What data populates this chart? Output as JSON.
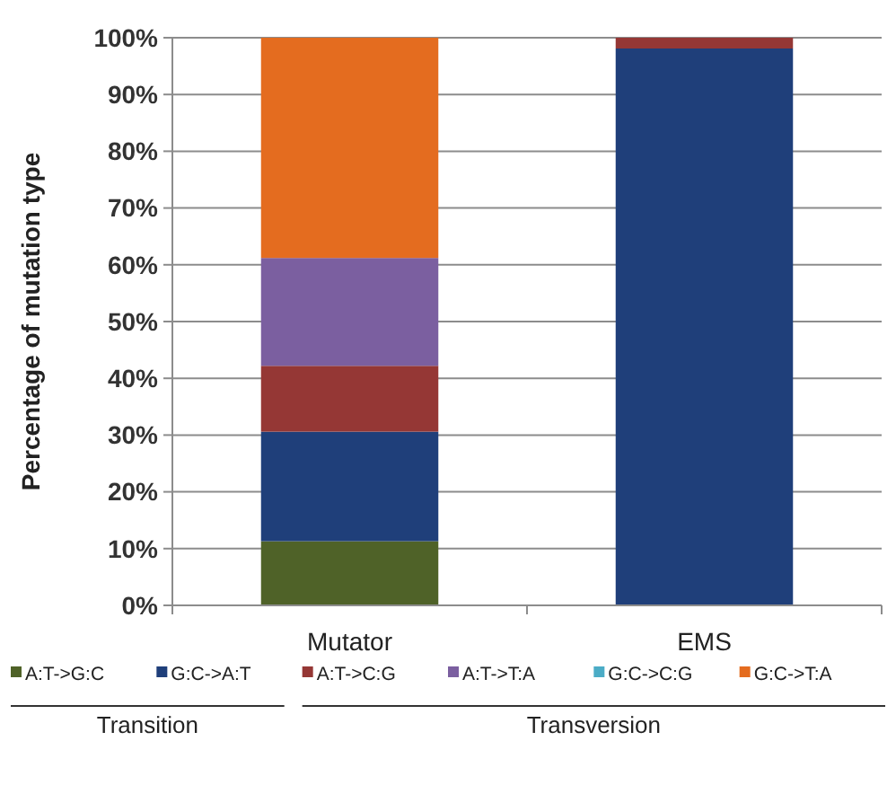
{
  "chart_data": {
    "type": "bar",
    "stacked": true,
    "ylabel": "Percentage of mutation type",
    "categories": [
      "Mutator",
      "EMS"
    ],
    "series": [
      {
        "name": "A:T->G:C",
        "color": "#4f6228",
        "values": [
          11.3,
          0
        ]
      },
      {
        "name": "G:C->A:T",
        "color": "#1f3f7a",
        "values": [
          19.3,
          98.1
        ]
      },
      {
        "name": "A:T->C:G",
        "color": "#953735",
        "values": [
          11.6,
          1.9
        ]
      },
      {
        "name": "A:T->T:A",
        "color": "#7b5fa0",
        "values": [
          19,
          0
        ]
      },
      {
        "name": "G:C->C:G",
        "color": "#4bacc6",
        "values": [
          0,
          0
        ]
      },
      {
        "name": "G:C->T:A",
        "color": "#e46c1f",
        "values": [
          38.8,
          0
        ]
      }
    ],
    "ylim": [
      0,
      100
    ],
    "yticks": [
      {
        "value": 0,
        "label": "0%"
      },
      {
        "value": 10,
        "label": "10%"
      },
      {
        "value": 20,
        "label": "20%"
      },
      {
        "value": 30,
        "label": "30%"
      },
      {
        "value": 40,
        "label": "40%"
      },
      {
        "value": 50,
        "label": "50%"
      },
      {
        "value": 60,
        "label": "60%"
      },
      {
        "value": 70,
        "label": "70%"
      },
      {
        "value": 80,
        "label": "80%"
      },
      {
        "value": 90,
        "label": "90%"
      },
      {
        "value": 100,
        "label": "100%"
      }
    ],
    "grid": "y",
    "legend": "bottom",
    "annotations": [
      "Transition",
      "Transversion"
    ]
  }
}
